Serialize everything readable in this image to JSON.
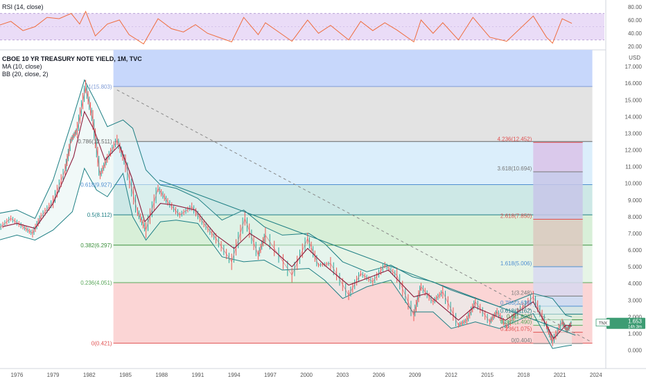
{
  "legend": {
    "rsi": "RSI (14, close)",
    "title": "CBOE 10 YR TREASURY NOTE YIELD, 1M, TVC",
    "ma": "MA (10, close)",
    "bb": "BB (20, close, 2)"
  },
  "colors": {
    "price_line": "#e05a6a",
    "ma_line": "#8c1a3a",
    "bb_line": "#1e7f84",
    "bb_fill": "#e6f4f3",
    "rsi_line": "#ef6c3c",
    "rsi_band": "#eadcf7",
    "fib_blue": "#c7d7fb",
    "fib_grey": "#e3e3e3",
    "fib_lightblue": "#dbeefb",
    "fib_teal": "#cde8e6",
    "fib_green": "#d8efd8",
    "fib_lightgreen": "#e6f4e6",
    "fib_red": "#fbd5d5",
    "last_price_badge": "#3d9c73"
  },
  "chart_data": {
    "type": "line",
    "x_axis_ticks": [
      "1976",
      "1979",
      "1982",
      "1985",
      "1988",
      "1991",
      "1994",
      "1997",
      "2000",
      "2003",
      "2006",
      "2009",
      "2012",
      "2015",
      "2018",
      "2021",
      "2024"
    ],
    "y_axis_ticks": [
      "0.000",
      "1.000",
      "2.000",
      "3.000",
      "4.000",
      "5.000",
      "6.000",
      "7.000",
      "8.000",
      "9.000",
      "10.000",
      "11.000",
      "12.000",
      "13.000",
      "14.000",
      "15.000",
      "16.000",
      "17.000"
    ],
    "y_unit": "USD",
    "rsi_ticks": [
      "80.00",
      "60.00",
      "40.00",
      "20.00"
    ],
    "last_price": "1.653",
    "last_price_sub": "14h 3m",
    "last_price_tag": "TNX",
    "series": [
      {
        "name": "CBOE 10 YR TREASURY NOTE YIELD",
        "points": [
          [
            1974.5,
            7.3
          ],
          [
            1975.5,
            7.9
          ],
          [
            1976.5,
            7.4
          ],
          [
            1977.3,
            7.0
          ],
          [
            1978,
            8.0
          ],
          [
            1979,
            8.9
          ],
          [
            1980,
            10.8
          ],
          [
            1980.5,
            12.6
          ],
          [
            1981,
            13.2
          ],
          [
            1981.7,
            15.8
          ],
          [
            1982.3,
            13.8
          ],
          [
            1982.9,
            10.5
          ],
          [
            1983.5,
            11.5
          ],
          [
            1984.3,
            12.6
          ],
          [
            1985,
            11.2
          ],
          [
            1986,
            8.3
          ],
          [
            1986.7,
            7.2
          ],
          [
            1987.7,
            9.7
          ],
          [
            1988.5,
            8.9
          ],
          [
            1989.5,
            8.1
          ],
          [
            1990.5,
            8.6
          ],
          [
            1991.5,
            7.6
          ],
          [
            1992.5,
            6.7
          ],
          [
            1993.8,
            5.3
          ],
          [
            1994.9,
            7.9
          ],
          [
            1996,
            5.7
          ],
          [
            1996.6,
            6.9
          ],
          [
            1998.8,
            4.5
          ],
          [
            2000.1,
            6.7
          ],
          [
            2001,
            5.1
          ],
          [
            2002,
            5.2
          ],
          [
            2003.5,
            3.3
          ],
          [
            2004.5,
            4.6
          ],
          [
            2005.5,
            4.1
          ],
          [
            2006.5,
            5.1
          ],
          [
            2007.5,
            4.5
          ],
          [
            2008.9,
            2.1
          ],
          [
            2009.5,
            3.8
          ],
          [
            2010.5,
            2.9
          ],
          [
            2011.3,
            3.5
          ],
          [
            2012.6,
            1.5
          ],
          [
            2013.3,
            1.8
          ],
          [
            2014,
            2.9
          ],
          [
            2015.2,
            1.7
          ],
          [
            2015.8,
            2.3
          ],
          [
            2016.6,
            1.4
          ],
          [
            2017.5,
            2.3
          ],
          [
            2018.8,
            3.2
          ],
          [
            2019.9,
            1.5
          ],
          [
            2020.4,
            0.52
          ],
          [
            2021.2,
            1.7
          ],
          [
            2021.6,
            1.2
          ],
          [
            2022.0,
            1.653
          ]
        ]
      },
      {
        "name": "MA (10, close)",
        "points": [
          [
            1974.8,
            7.4
          ],
          [
            1976,
            7.6
          ],
          [
            1977.5,
            7.3
          ],
          [
            1979,
            8.8
          ],
          [
            1980.7,
            11.6
          ],
          [
            1981.6,
            14.3
          ],
          [
            1982.4,
            13.2
          ],
          [
            1983.3,
            11.4
          ],
          [
            1984.5,
            12.3
          ],
          [
            1985.5,
            10.4
          ],
          [
            1986.6,
            7.7
          ],
          [
            1987.9,
            8.8
          ],
          [
            1989,
            8.7
          ],
          [
            1990.8,
            8.4
          ],
          [
            1992.5,
            6.9
          ],
          [
            1994,
            6.1
          ],
          [
            1995.3,
            7.0
          ],
          [
            1996.8,
            6.3
          ],
          [
            1998.8,
            5.0
          ],
          [
            2000.1,
            6.1
          ],
          [
            2001.5,
            5.1
          ],
          [
            2003.5,
            3.9
          ],
          [
            2005,
            4.3
          ],
          [
            2006.8,
            4.8
          ],
          [
            2008.9,
            3.2
          ],
          [
            2010,
            3.4
          ],
          [
            2012.6,
            1.8
          ],
          [
            2013.9,
            2.6
          ],
          [
            2016.5,
            1.8
          ],
          [
            2018.8,
            2.9
          ],
          [
            2020.5,
            0.7
          ],
          [
            2021.5,
            1.5
          ],
          [
            2022.0,
            1.45
          ]
        ]
      },
      {
        "name": "BB (20, close, 2) upper",
        "points": [
          [
            1974.5,
            8.2
          ],
          [
            1976,
            8.4
          ],
          [
            1977.5,
            7.9
          ],
          [
            1979,
            10.2
          ],
          [
            1980.6,
            13.8
          ],
          [
            1981.6,
            16.2
          ],
          [
            1982.6,
            14.8
          ],
          [
            1983.5,
            13.4
          ],
          [
            1984.8,
            13.8
          ],
          [
            1985.6,
            13.3
          ],
          [
            1986.7,
            10.8
          ],
          [
            1987.9,
            9.9
          ],
          [
            1989.2,
            9.7
          ],
          [
            1991,
            9.1
          ],
          [
            1993,
            7.8
          ],
          [
            1994.8,
            8.4
          ],
          [
            1996.5,
            7.4
          ],
          [
            1998,
            6.9
          ],
          [
            2000.2,
            7.0
          ],
          [
            2001.5,
            6.4
          ],
          [
            2003,
            5.3
          ],
          [
            2005,
            4.7
          ],
          [
            2007,
            5.1
          ],
          [
            2008.8,
            4.4
          ],
          [
            2010.5,
            4.1
          ],
          [
            2012,
            3.6
          ],
          [
            2014,
            3.1
          ],
          [
            2016,
            2.6
          ],
          [
            2018.8,
            3.4
          ],
          [
            2020.4,
            3.1
          ],
          [
            2021.5,
            2.1
          ],
          [
            2022,
            2.0
          ]
        ]
      },
      {
        "name": "BB (20, close, 2) lower",
        "points": [
          [
            1974.5,
            6.6
          ],
          [
            1976,
            6.9
          ],
          [
            1977.5,
            6.6
          ],
          [
            1979,
            7.2
          ],
          [
            1980.6,
            8.3
          ],
          [
            1981.6,
            10.9
          ],
          [
            1982.6,
            9.6
          ],
          [
            1983.5,
            9.2
          ],
          [
            1984.8,
            10.6
          ],
          [
            1985.6,
            8.0
          ],
          [
            1986.7,
            6.6
          ],
          [
            1987.9,
            7.7
          ],
          [
            1989.2,
            7.8
          ],
          [
            1991,
            7.6
          ],
          [
            1993,
            5.6
          ],
          [
            1994.8,
            5.3
          ],
          [
            1996.5,
            5.4
          ],
          [
            1998,
            4.8
          ],
          [
            2000.2,
            4.9
          ],
          [
            2001.5,
            4.2
          ],
          [
            2003,
            3.1
          ],
          [
            2005,
            3.8
          ],
          [
            2007,
            4.2
          ],
          [
            2008.8,
            2.3
          ],
          [
            2010.5,
            2.3
          ],
          [
            2012,
            1.3
          ],
          [
            2014,
            1.7
          ],
          [
            2016,
            1.3
          ],
          [
            2018.8,
            2.2
          ],
          [
            2020.4,
            0.1
          ],
          [
            2021.5,
            0.25
          ],
          [
            2022,
            0.3
          ]
        ]
      },
      {
        "name": "RSI (14, close)",
        "points": [
          [
            1974.5,
            52
          ],
          [
            1975.5,
            58
          ],
          [
            1976.5,
            44
          ],
          [
            1977.5,
            50
          ],
          [
            1978.5,
            64
          ],
          [
            1979.5,
            62
          ],
          [
            1980.5,
            70
          ],
          [
            1981.2,
            54
          ],
          [
            1981.7,
            73
          ],
          [
            1982.5,
            36
          ],
          [
            1983.5,
            54
          ],
          [
            1984.5,
            60
          ],
          [
            1985.3,
            38
          ],
          [
            1986.5,
            24
          ],
          [
            1987.7,
            62
          ],
          [
            1988.8,
            47
          ],
          [
            1989.8,
            42
          ],
          [
            1990.8,
            53
          ],
          [
            1991.8,
            40
          ],
          [
            1993.8,
            27
          ],
          [
            1994.8,
            64
          ],
          [
            1996,
            38
          ],
          [
            1996.6,
            56
          ],
          [
            1998.8,
            28
          ],
          [
            2000.1,
            60
          ],
          [
            2001,
            40
          ],
          [
            2002,
            52
          ],
          [
            2003.5,
            30
          ],
          [
            2004.5,
            58
          ],
          [
            2005.5,
            44
          ],
          [
            2006.5,
            56
          ],
          [
            2007.5,
            45
          ],
          [
            2008.9,
            27
          ],
          [
            2009.5,
            60
          ],
          [
            2010.5,
            40
          ],
          [
            2011.3,
            56
          ],
          [
            2012.6,
            30
          ],
          [
            2013.8,
            64
          ],
          [
            2015.2,
            34
          ],
          [
            2016.6,
            28
          ],
          [
            2018.8,
            66
          ],
          [
            2019.9,
            34
          ],
          [
            2020.4,
            25
          ],
          [
            2021.2,
            62
          ],
          [
            2022,
            55
          ]
        ]
      }
    ],
    "fib_retracement_left": {
      "levels": [
        {
          "label": "1(15.803)",
          "value": 15.803
        },
        {
          "label": "0.786(12.511)",
          "value": 12.511
        },
        {
          "label": "0.618(9.927)",
          "value": 9.927
        },
        {
          "label": "0.5(8.112)",
          "value": 8.112
        },
        {
          "label": "0.382(6.297)",
          "value": 6.297
        },
        {
          "label": "0.236(4.051)",
          "value": 4.051
        },
        {
          "label": "0(0.421)",
          "value": 0.421
        }
      ],
      "x_start": 1984.0,
      "x_end": 2023.7
    },
    "fib_extension_right": {
      "levels": [
        {
          "label": "4.236(12.452)",
          "value": 12.452
        },
        {
          "label": "3.618(10.694)",
          "value": 10.694
        },
        {
          "label": "2.618(7.850)",
          "value": 7.85
        },
        {
          "label": "1.618(5.006)",
          "value": 5.006
        },
        {
          "label": "1(3.248)",
          "value": 3.248
        },
        {
          "label": "0.786(2.639)",
          "value": 2.639
        },
        {
          "label": "0.618(2.162)",
          "value": 2.162
        },
        {
          "label": "0.5(1.826)",
          "value": 1.826
        },
        {
          "label": "0.382(1.490)",
          "value": 1.49
        },
        {
          "label": "0.236(1.075)",
          "value": 1.075
        },
        {
          "label": "0(0.404)",
          "value": 0.404
        }
      ],
      "x_start": 2018.8,
      "x_end": 2022.9
    },
    "trend_lines": [
      {
        "name": "downtrend",
        "from": [
          1987.8,
          10.2
        ],
        "to": [
          2022.3,
          0.9
        ]
      },
      {
        "name": "dashed-projection",
        "from": [
          1984.3,
          15.6
        ],
        "to": [
          2023.6,
          0.5
        ]
      }
    ]
  }
}
